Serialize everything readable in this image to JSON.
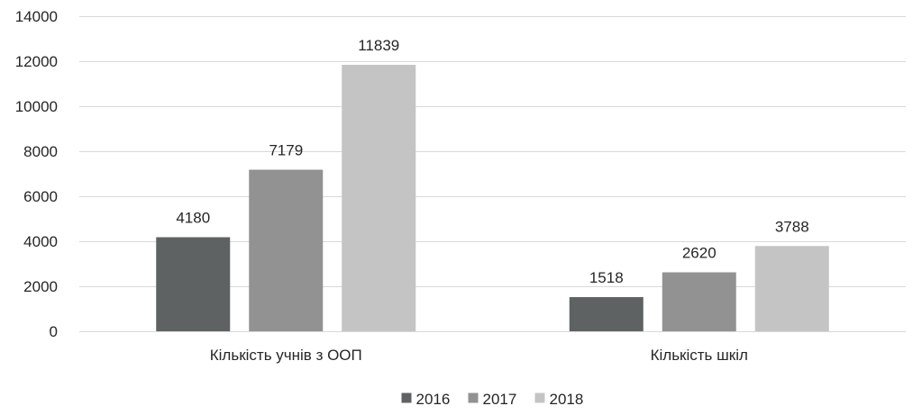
{
  "chart_data": {
    "type": "bar",
    "categories": [
      "Кількість учнів з ООП",
      "Кількість шкіл"
    ],
    "series": [
      {
        "name": "2016",
        "values": [
          4180,
          1518
        ],
        "color": "#5f6263"
      },
      {
        "name": "2017",
        "values": [
          7179,
          2620
        ],
        "color": "#929292"
      },
      {
        "name": "2018",
        "values": [
          11839,
          3788
        ],
        "color": "#c4c4c4"
      }
    ],
    "ylim": [
      0,
      14000
    ],
    "y_ticks": [
      0,
      2000,
      4000,
      6000,
      8000,
      10000,
      12000,
      14000
    ],
    "grid": true,
    "legend_position": "bottom",
    "data_labels": true
  }
}
